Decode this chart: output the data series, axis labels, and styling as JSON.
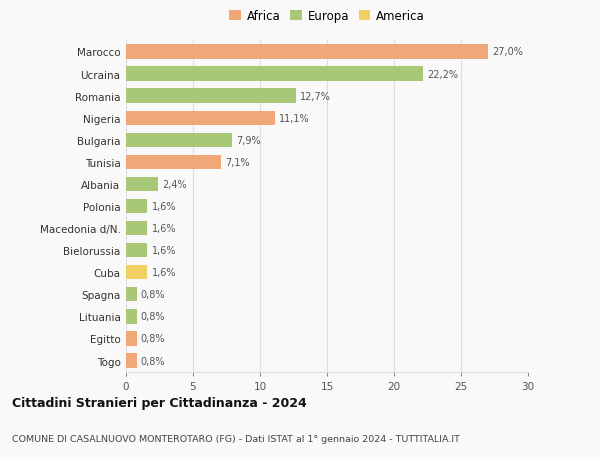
{
  "categories": [
    "Marocco",
    "Ucraina",
    "Romania",
    "Nigeria",
    "Bulgaria",
    "Tunisia",
    "Albania",
    "Polonia",
    "Macedonia d/N.",
    "Bielorussia",
    "Cuba",
    "Spagna",
    "Lituania",
    "Egitto",
    "Togo"
  ],
  "values": [
    27.0,
    22.2,
    12.7,
    11.1,
    7.9,
    7.1,
    2.4,
    1.6,
    1.6,
    1.6,
    1.6,
    0.8,
    0.8,
    0.8,
    0.8
  ],
  "labels": [
    "27,0%",
    "22,2%",
    "12,7%",
    "11,1%",
    "7,9%",
    "7,1%",
    "2,4%",
    "1,6%",
    "1,6%",
    "1,6%",
    "1,6%",
    "0,8%",
    "0,8%",
    "0,8%",
    "0,8%"
  ],
  "colors": [
    "#f0a878",
    "#a8c878",
    "#a8c878",
    "#f0a878",
    "#a8c878",
    "#f0a878",
    "#a8c878",
    "#a8c878",
    "#a8c878",
    "#a8c878",
    "#f0d060",
    "#a8c878",
    "#a8c878",
    "#f0a878",
    "#f0a878"
  ],
  "legend": [
    {
      "label": "Africa",
      "color": "#f0a878"
    },
    {
      "label": "Europa",
      "color": "#a8c878"
    },
    {
      "label": "America",
      "color": "#f0d060"
    }
  ],
  "xlim": [
    0,
    30
  ],
  "xticks": [
    0,
    5,
    10,
    15,
    20,
    25,
    30
  ],
  "title": "Cittadini Stranieri per Cittadinanza - 2024",
  "subtitle": "COMUNE DI CASALNUOVO MONTEROTARO (FG) - Dati ISTAT al 1° gennaio 2024 - TUTTITALIA.IT",
  "background_color": "#f9f9f9",
  "grid_color": "#dddddd"
}
